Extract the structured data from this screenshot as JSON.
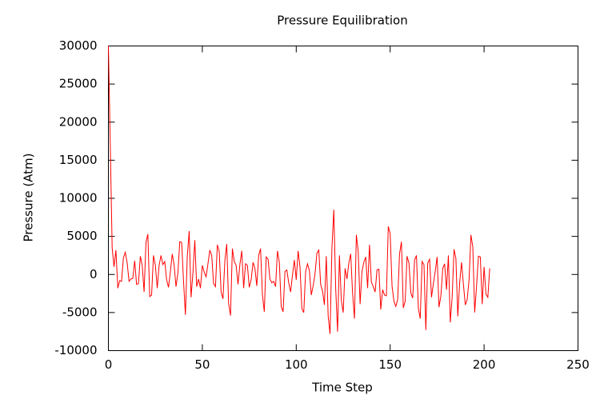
{
  "chart_data": {
    "type": "line",
    "title": "Pressure Equilibration",
    "xlabel": "Time Step",
    "ylabel": "Pressure (Atm)",
    "x": [
      0,
      1,
      2,
      3,
      4,
      5,
      6,
      7,
      8,
      9,
      10,
      11,
      12,
      13,
      14,
      15,
      16,
      17,
      18,
      19,
      20,
      21,
      22,
      23,
      24,
      25,
      26,
      27,
      28,
      29,
      30,
      31,
      32,
      33,
      34,
      35,
      36,
      37,
      38,
      39,
      40,
      41,
      42,
      43,
      44,
      45,
      46,
      47,
      48,
      49,
      50,
      51,
      52,
      53,
      54,
      55,
      56,
      57,
      58,
      59,
      60,
      61,
      62,
      63,
      64,
      65,
      66,
      67,
      68,
      69,
      70,
      71,
      72,
      73,
      74,
      75,
      76,
      77,
      78,
      79,
      80,
      81,
      82,
      83,
      84,
      85,
      86,
      87,
      88,
      89,
      90,
      91,
      92,
      93,
      94,
      95,
      96,
      97,
      98,
      99,
      100,
      101,
      102,
      103,
      104,
      105,
      106,
      107,
      108,
      109,
      110,
      111,
      112,
      113,
      114,
      115,
      116,
      117,
      118,
      119,
      120,
      121,
      122,
      123,
      124,
      125,
      126,
      127,
      128,
      129,
      130,
      131,
      132,
      133,
      134,
      135,
      136,
      137,
      138,
      139,
      140,
      141,
      142,
      143,
      144,
      145,
      146,
      147,
      148,
      149,
      150,
      151,
      152,
      153,
      154,
      155,
      156,
      157,
      158,
      159,
      160,
      161,
      162,
      163,
      164,
      165,
      166,
      167,
      168,
      169,
      170,
      171,
      172,
      173,
      174,
      175,
      176,
      177,
      178,
      179,
      180,
      181,
      182,
      183,
      184,
      185,
      186,
      187,
      188,
      189,
      190,
      191,
      192,
      193,
      194,
      195,
      196,
      197,
      198,
      199,
      200,
      201,
      202,
      203
    ],
    "series": [
      {
        "name": "Pressure",
        "color": "#ff0000",
        "values": [
          30000,
          17000,
          3500,
          1000,
          3200,
          -1800,
          -800,
          -900,
          2200,
          2900,
          1500,
          -900,
          -600,
          -500,
          1800,
          -1300,
          -1200,
          2400,
          1200,
          -2300,
          4200,
          5300,
          -2900,
          -2700,
          2500,
          1200,
          -1800,
          1200,
          2500,
          1300,
          1700,
          -700,
          -1700,
          400,
          2700,
          1200,
          -1600,
          200,
          4300,
          4200,
          -900,
          -5300,
          2400,
          5700,
          -3000,
          200,
          4500,
          -1600,
          -600,
          -1800,
          1200,
          300,
          -300,
          1400,
          3200,
          2500,
          -1200,
          -1600,
          3900,
          3000,
          -2300,
          -3200,
          1800,
          4000,
          -3800,
          -5400,
          3400,
          1700,
          1200,
          -1300,
          1300,
          3100,
          -1800,
          1400,
          1200,
          -1700,
          -700,
          1600,
          800,
          -1500,
          2500,
          3400,
          -2700,
          -4900,
          2300,
          2000,
          -600,
          -1100,
          -900,
          -1600,
          3100,
          1600,
          -4200,
          -4900,
          400,
          600,
          -1100,
          -2300,
          -100,
          1900,
          -700,
          3100,
          1000,
          -4500,
          -5000,
          400,
          1400,
          500,
          -2700,
          -1500,
          100,
          2800,
          3200,
          -1300,
          -2200,
          -4000,
          2400,
          -5500,
          -7800,
          3500,
          8500,
          -1800,
          -7500,
          2500,
          -3400,
          -5000,
          800,
          -600,
          1500,
          2700,
          -2500,
          -5800,
          5200,
          3000,
          -3900,
          400,
          1600,
          2300,
          -1800,
          3900,
          -1000,
          -1600,
          -2300,
          600,
          700,
          -4600,
          -2000,
          -2700,
          -2800,
          6300,
          5400,
          -1500,
          -3500,
          -4200,
          -3300,
          2700,
          4300,
          -4400,
          -3500,
          2400,
          1500,
          -2400,
          -3100,
          1900,
          2500,
          -4400,
          -5800,
          1700,
          1300,
          -7300,
          1500,
          2000,
          -3000,
          -1200,
          400,
          2300,
          -4300,
          -2800,
          800,
          1400,
          -2000,
          2500,
          -6300,
          -3000,
          3300,
          2100,
          -5500,
          -1100,
          1600,
          -1300,
          -4000,
          -3300,
          -700,
          5200,
          3600,
          -5000,
          -1500,
          2400,
          2300,
          -3900,
          1000,
          -2600,
          -3000,
          800
        ]
      }
    ],
    "xlim": [
      0,
      250
    ],
    "xticks": [
      0,
      50,
      100,
      150,
      200,
      250
    ],
    "ylim": [
      -10000,
      30000
    ],
    "yticks": [
      -10000,
      -5000,
      0,
      5000,
      10000,
      15000,
      20000,
      25000,
      30000
    ]
  }
}
